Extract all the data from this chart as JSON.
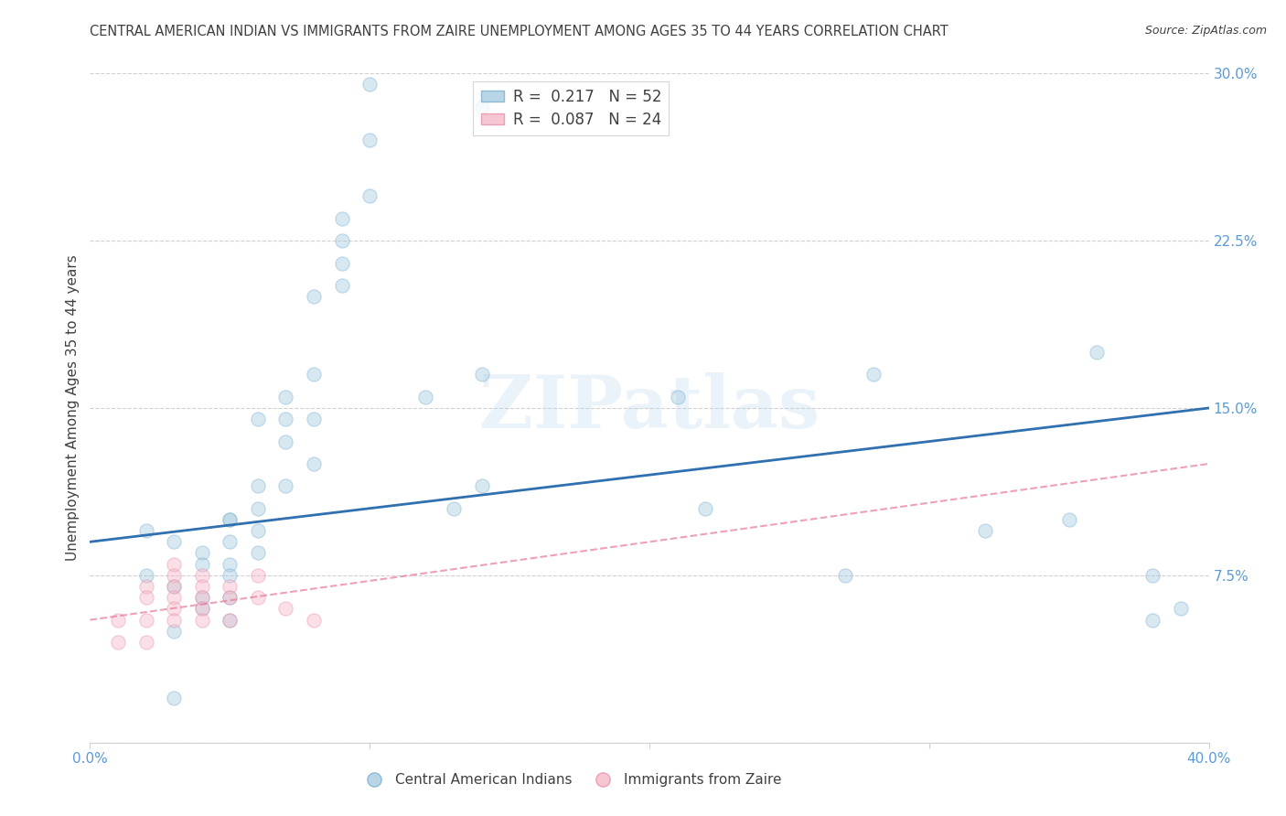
{
  "title": "CENTRAL AMERICAN INDIAN VS IMMIGRANTS FROM ZAIRE UNEMPLOYMENT AMONG AGES 35 TO 44 YEARS CORRELATION CHART",
  "source": "Source: ZipAtlas.com",
  "ylabel": "Unemployment Among Ages 35 to 44 years",
  "xmin": 0.0,
  "xmax": 0.4,
  "ymin": 0.0,
  "ymax": 0.3,
  "xticks": [
    0.0,
    0.1,
    0.2,
    0.3,
    0.4
  ],
  "xtick_labels": [
    "0.0%",
    "",
    "",
    "",
    "40.0%"
  ],
  "yticks_right": [
    0.0,
    0.075,
    0.15,
    0.225,
    0.3
  ],
  "ytick_labels_right": [
    "",
    "7.5%",
    "15.0%",
    "22.5%",
    "30.0%"
  ],
  "legend_r1": "R =  0.217",
  "legend_n1": "N = 52",
  "legend_r2": "R =  0.087",
  "legend_n2": "N = 24",
  "blue_color": "#a8cce0",
  "pink_color": "#f4b8c8",
  "blue_edge_color": "#7ab0d0",
  "pink_edge_color": "#e890a8",
  "blue_line_color": "#3070b0",
  "pink_line_color": "#e87898",
  "watermark_text": "ZIPatlas",
  "blue_scatter_x": [
    0.02,
    0.02,
    0.03,
    0.03,
    0.03,
    0.04,
    0.04,
    0.04,
    0.04,
    0.05,
    0.05,
    0.05,
    0.05,
    0.05,
    0.05,
    0.06,
    0.06,
    0.06,
    0.06,
    0.07,
    0.07,
    0.07,
    0.07,
    0.08,
    0.08,
    0.08,
    0.09,
    0.09,
    0.09,
    0.09,
    0.1,
    0.1,
    0.1,
    0.12,
    0.13,
    0.14,
    0.14,
    0.21,
    0.22,
    0.27,
    0.28,
    0.32,
    0.35,
    0.36,
    0.38,
    0.38,
    0.39,
    0.14,
    0.08,
    0.06,
    0.05,
    0.03
  ],
  "blue_scatter_y": [
    0.095,
    0.075,
    0.09,
    0.07,
    0.05,
    0.085,
    0.08,
    0.065,
    0.06,
    0.1,
    0.09,
    0.08,
    0.075,
    0.065,
    0.055,
    0.115,
    0.105,
    0.095,
    0.085,
    0.155,
    0.145,
    0.135,
    0.115,
    0.165,
    0.145,
    0.125,
    0.215,
    0.205,
    0.235,
    0.225,
    0.27,
    0.245,
    0.295,
    0.155,
    0.105,
    0.165,
    0.115,
    0.155,
    0.105,
    0.075,
    0.165,
    0.095,
    0.1,
    0.175,
    0.075,
    0.055,
    0.06,
    0.285,
    0.2,
    0.145,
    0.1,
    0.02
  ],
  "pink_scatter_x": [
    0.01,
    0.01,
    0.02,
    0.02,
    0.02,
    0.02,
    0.03,
    0.03,
    0.03,
    0.03,
    0.03,
    0.03,
    0.04,
    0.04,
    0.04,
    0.04,
    0.04,
    0.05,
    0.05,
    0.05,
    0.06,
    0.06,
    0.07,
    0.08
  ],
  "pink_scatter_y": [
    0.055,
    0.045,
    0.07,
    0.065,
    0.055,
    0.045,
    0.08,
    0.075,
    0.07,
    0.065,
    0.06,
    0.055,
    0.075,
    0.07,
    0.065,
    0.06,
    0.055,
    0.07,
    0.065,
    0.055,
    0.075,
    0.065,
    0.06,
    0.055
  ],
  "blue_line_x0": 0.0,
  "blue_line_x1": 0.4,
  "blue_line_y0": 0.09,
  "blue_line_y1": 0.15,
  "pink_line_x0": 0.0,
  "pink_line_x1": 0.4,
  "pink_line_y0": 0.055,
  "pink_line_y1": 0.125,
  "background_color": "#ffffff",
  "grid_color": "#d0d0d0",
  "title_color": "#404040",
  "axis_tick_color": "#5b9bd5",
  "scatter_size": 120,
  "scatter_alpha": 0.45
}
